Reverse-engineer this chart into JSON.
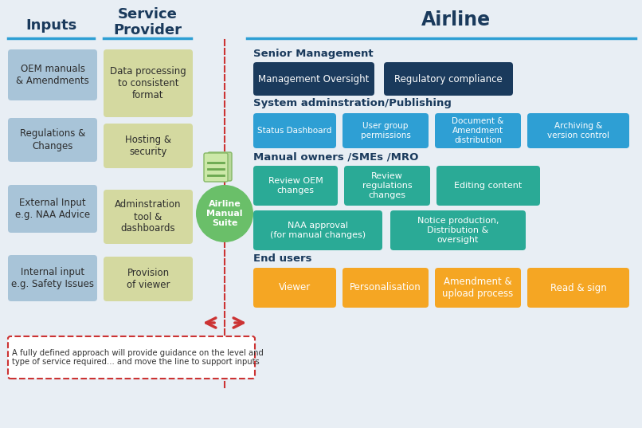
{
  "bg_color": "#e8eef4",
  "title_color": "#1a3a5c",
  "section_label_color": "#1a3a5c",
  "inputs_title": "Inputs",
  "service_title": "Service\nProvider",
  "airline_title": "Airline",
  "input_boxes": [
    "OEM manuals\n& Amendments",
    "Regulations &\nChanges",
    "External Input\ne.g. NAA Advice",
    "Internal input\ne.g. Safety Issues"
  ],
  "input_color": "#a8c4d8",
  "service_boxes": [
    "Data processing\nto consistent\nformat",
    "Hosting &\nsecurity",
    "Adminstration\ntool &\ndashboards",
    "Provision\nof viewer"
  ],
  "service_color": "#d4d9a0",
  "senior_mgmt_label": "Senior Management",
  "senior_mgmt_boxes": [
    "Management Oversight",
    "Regulatory compliance"
  ],
  "senior_mgmt_color": "#1a3a5c",
  "sys_admin_label": "System adminstration/Publishing",
  "sys_admin_boxes": [
    "Status Dashboard",
    "User group\npermissions",
    "Document &\nAmendment\ndistribution",
    "Archiving &\nversion control"
  ],
  "sys_admin_color": "#2e9fd4",
  "manual_owners_label": "Manual owners /SMEs /MRO",
  "manual_owners_row1": [
    "Review OEM\nchanges",
    "Review\nregulations\nchanges",
    "Editing content"
  ],
  "manual_owners_row2": [
    "NAA approval\n(for manual changes)",
    "Notice production,\nDistribution &\noversight"
  ],
  "manual_owners_color": "#2aaa96",
  "end_users_label": "End users",
  "end_users_boxes": [
    "Viewer",
    "Personalisation",
    "Amendment &\nupload process",
    "Read & sign"
  ],
  "end_users_color": "#f5a623",
  "circle_text": "Airline\nManual\nSuite",
  "circle_color": "#6abf69",
  "note_text": "A fully defined approach will provide guidance on the level and\ntype of service required... and move the line to support inputs",
  "note_border_color": "#cc3333",
  "dashed_line_color": "#cc3333",
  "header_line_color": "#2e9fd4"
}
